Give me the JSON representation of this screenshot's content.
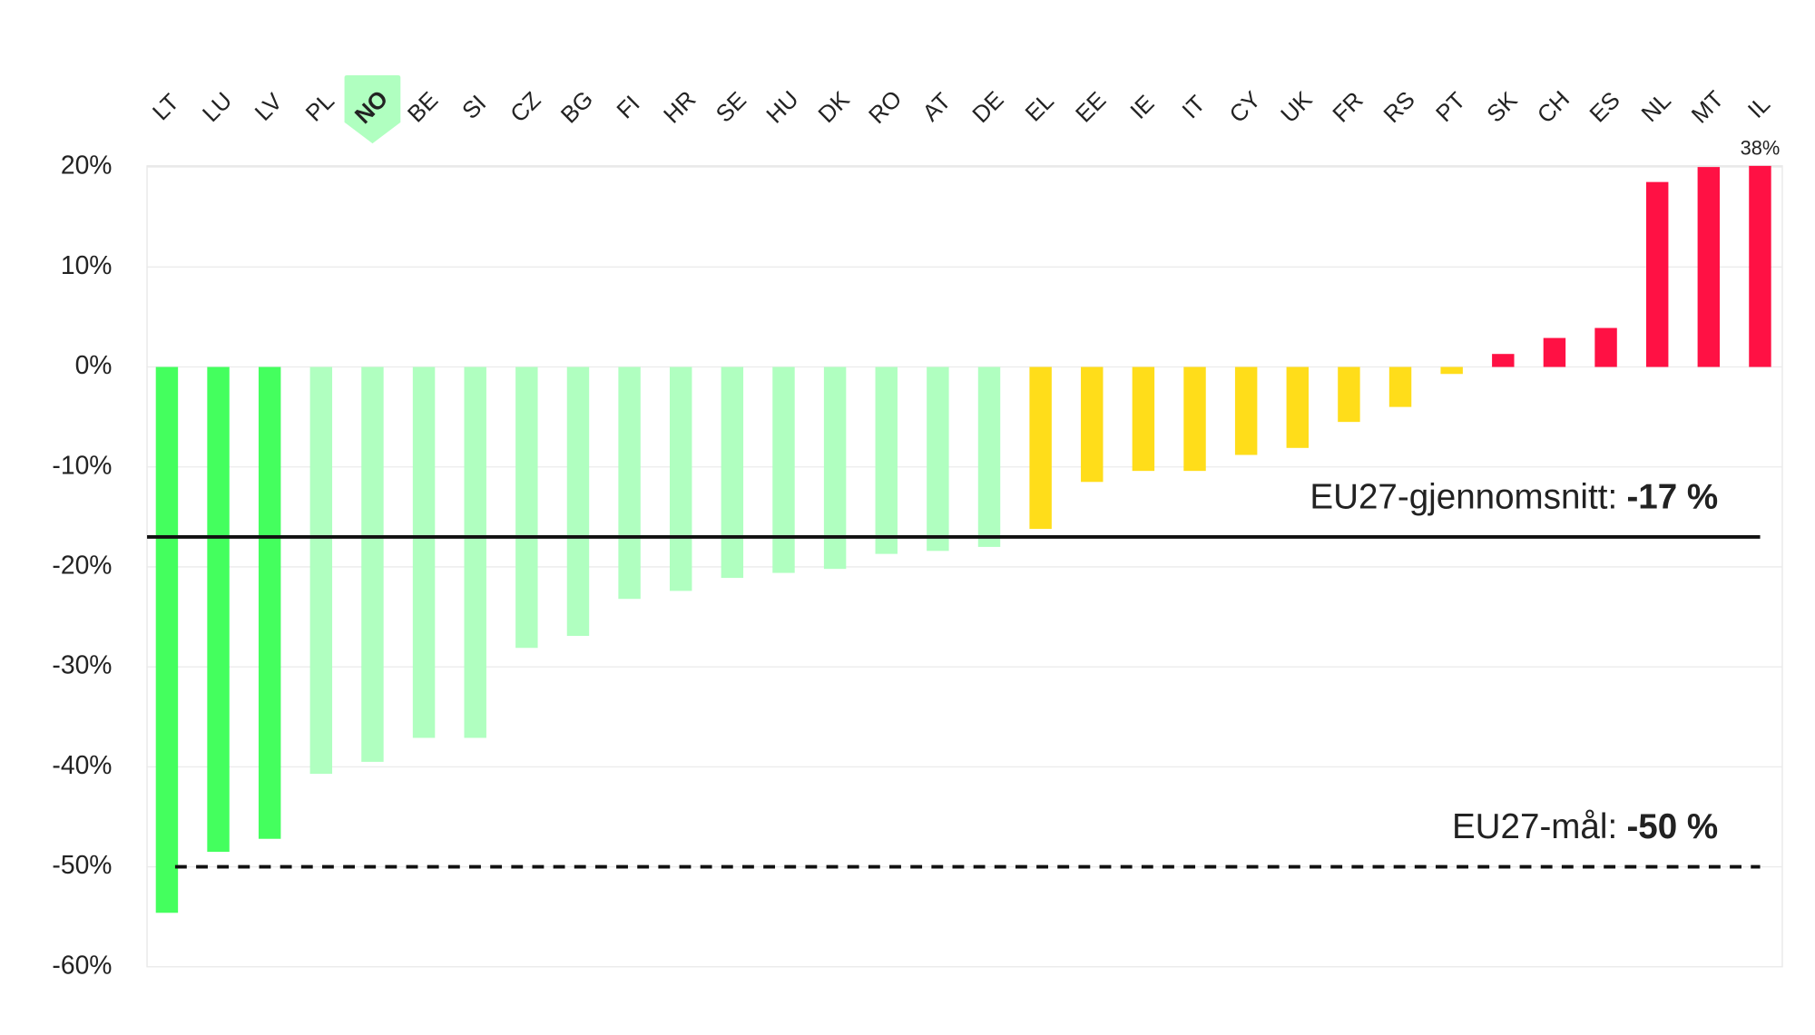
{
  "chart_data": {
    "type": "bar",
    "categories": [
      "LT",
      "LU",
      "LV",
      "PL",
      "NO",
      "BE",
      "SI",
      "CZ",
      "BG",
      "FI",
      "HR",
      "SE",
      "HU",
      "DK",
      "RO",
      "AT",
      "DE",
      "EL",
      "EE",
      "IE",
      "IT",
      "CY",
      "UK",
      "FR",
      "RS",
      "PT",
      "SK",
      "CH",
      "ES",
      "NL",
      "MT",
      "IL"
    ],
    "values": [
      -54.6,
      -48.5,
      -47.2,
      -40.7,
      -39.5,
      -37.1,
      -37.1,
      -28.1,
      -26.9,
      -23.2,
      -22.4,
      -21.1,
      -20.6,
      -20.2,
      -18.7,
      -18.4,
      -18.0,
      -16.2,
      -11.5,
      -10.4,
      -10.4,
      -8.8,
      -8.1,
      -5.5,
      -4.0,
      -0.7,
      1.3,
      2.9,
      3.9,
      18.5,
      20,
      38
    ],
    "value_labels": [
      null,
      null,
      null,
      null,
      null,
      null,
      null,
      null,
      null,
      null,
      null,
      null,
      null,
      null,
      null,
      null,
      null,
      null,
      null,
      null,
      null,
      null,
      null,
      null,
      null,
      null,
      null,
      null,
      null,
      null,
      null,
      "38%"
    ],
    "colors": [
      "#44ff5e",
      "#44ff5e",
      "#44ff5e",
      "#b0ffc0",
      "#b0ffc0",
      "#b0ffc0",
      "#b0ffc0",
      "#b0ffc0",
      "#b0ffc0",
      "#b0ffc0",
      "#b0ffc0",
      "#b0ffc0",
      "#b0ffc0",
      "#b0ffc0",
      "#b0ffc0",
      "#b0ffc0",
      "#b0ffc0",
      "#ffdd1a",
      "#ffdd1a",
      "#ffdd1a",
      "#ffdd1a",
      "#ffdd1a",
      "#ffdd1a",
      "#ffdd1a",
      "#ffdd1a",
      "#ffdd1a",
      "#ff1144",
      "#ff1144",
      "#ff1144",
      "#ff1144",
      "#ff1144",
      "#ff1144"
    ],
    "highlight_index": 4,
    "highlight_color": "#b0ffc0",
    "ylim": [
      -60,
      20
    ],
    "yticks": [
      {
        "value": 20,
        "label": "20%"
      },
      {
        "value": 10,
        "label": "10%"
      },
      {
        "value": 0,
        "label": "0%"
      },
      {
        "value": -10,
        "label": "-10%"
      },
      {
        "value": -20,
        "label": "-20%"
      },
      {
        "value": -30,
        "label": "-30%"
      },
      {
        "value": -40,
        "label": "-40%"
      },
      {
        "value": -50,
        "label": "-50%"
      },
      {
        "value": -60,
        "label": "-60%"
      }
    ],
    "grid": true,
    "reference_lines": [
      {
        "label": "EU27-gjennomsnitt:",
        "value": -17,
        "value_label": "-17 %",
        "style": "solid"
      },
      {
        "label": "EU27-mål:",
        "value": -50,
        "value_label": "-50 %",
        "style": "dashed"
      }
    ]
  }
}
